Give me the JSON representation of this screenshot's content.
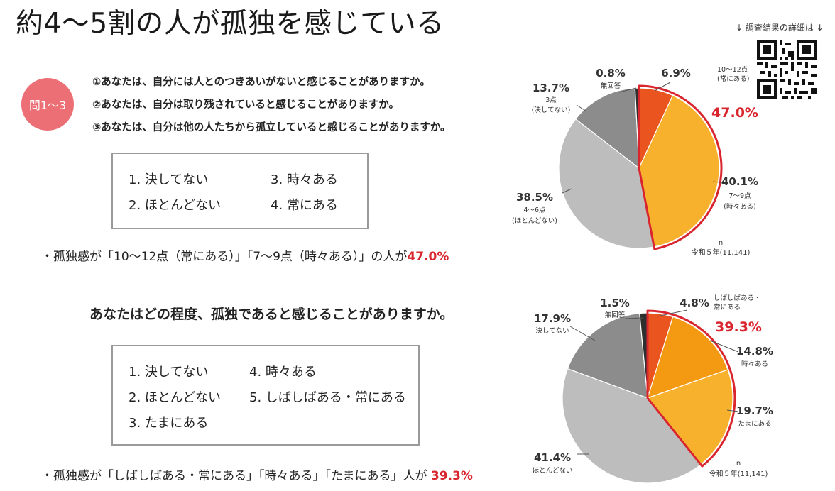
{
  "title": "約4～5割の人が孤独を感じている",
  "detail_link": "↓ 調査結果の詳細は ↓",
  "section1": {
    "badge": "問1～3",
    "questions": [
      "①あなたは、自分には人とのつきあいがないと感じることがありますか。",
      "②あなたは、自分は取り残されていると感じることがありますか。",
      "③あなたは、自分は他の人たちから孤立していると感じることがありますか。"
    ],
    "options": [
      "1.  決してない",
      "2.  ほとんどない",
      "3.  時々ある",
      "4.  常にある"
    ],
    "summary_prefix": "・孤独感が「10～12点（常にある）」「7～9点（時々ある）」の人が",
    "summary_value": "47.0%"
  },
  "section2": {
    "question": "あなたはどの程度、孤独であると感じることがありますか。",
    "options": [
      "1.  決してない",
      "2.  ほとんどない",
      "3.  たまにある",
      "4.  時々ある",
      "5.  しばしばある・常にある"
    ],
    "summary_prefix": "・孤独感が「しばしばある・常にある」「時々ある」「たまにある」人が ",
    "summary_value": "39.3%"
  },
  "chart_data": [
    {
      "type": "pie",
      "highlight_label": "47.0%",
      "n_label": "n",
      "n_value": "令和５年(11,141)",
      "slices": [
        {
          "pct": "6.9%",
          "value": 6.9,
          "desc": "10～12点",
          "desc2": "(常にある)",
          "color": "#e9541f",
          "highlight": true
        },
        {
          "pct": "40.1%",
          "value": 40.1,
          "desc": "7～9点",
          "desc2": "(時々ある)",
          "color": "#f7b12c",
          "highlight": true
        },
        {
          "pct": "38.5%",
          "value": 38.5,
          "desc": "4～6点",
          "desc2": "(ほとんどない)",
          "color": "#bdbdbd",
          "highlight": false
        },
        {
          "pct": "13.7%",
          "value": 13.7,
          "desc": "3点",
          "desc2": "(決してない)",
          "color": "#8c8c8c",
          "highlight": false
        },
        {
          "pct": "0.8%",
          "value": 0.8,
          "desc": "無回答",
          "desc2": "",
          "color": "#2f2f2f",
          "highlight": false
        }
      ]
    },
    {
      "type": "pie",
      "highlight_label": "39.3%",
      "n_label": "n",
      "n_value": "令和５年(11,141)",
      "slices": [
        {
          "pct": "4.8%",
          "value": 4.8,
          "desc": "しばしばある・",
          "desc2": "常にある",
          "color": "#e9541f",
          "highlight": true
        },
        {
          "pct": "14.8%",
          "value": 14.8,
          "desc": "時々ある",
          "desc2": "",
          "color": "#f39a12",
          "highlight": true
        },
        {
          "pct": "19.7%",
          "value": 19.7,
          "desc": "たまにある",
          "desc2": "",
          "color": "#f7b12c",
          "highlight": true
        },
        {
          "pct": "41.4%",
          "value": 41.4,
          "desc": "ほとんどない",
          "desc2": "",
          "color": "#bdbdbd",
          "highlight": false
        },
        {
          "pct": "17.9%",
          "value": 17.9,
          "desc": "決してない",
          "desc2": "",
          "color": "#8c8c8c",
          "highlight": false
        },
        {
          "pct": "1.5%",
          "value": 1.5,
          "desc": "無回答",
          "desc2": "",
          "color": "#2f2f2f",
          "highlight": false
        }
      ]
    }
  ]
}
